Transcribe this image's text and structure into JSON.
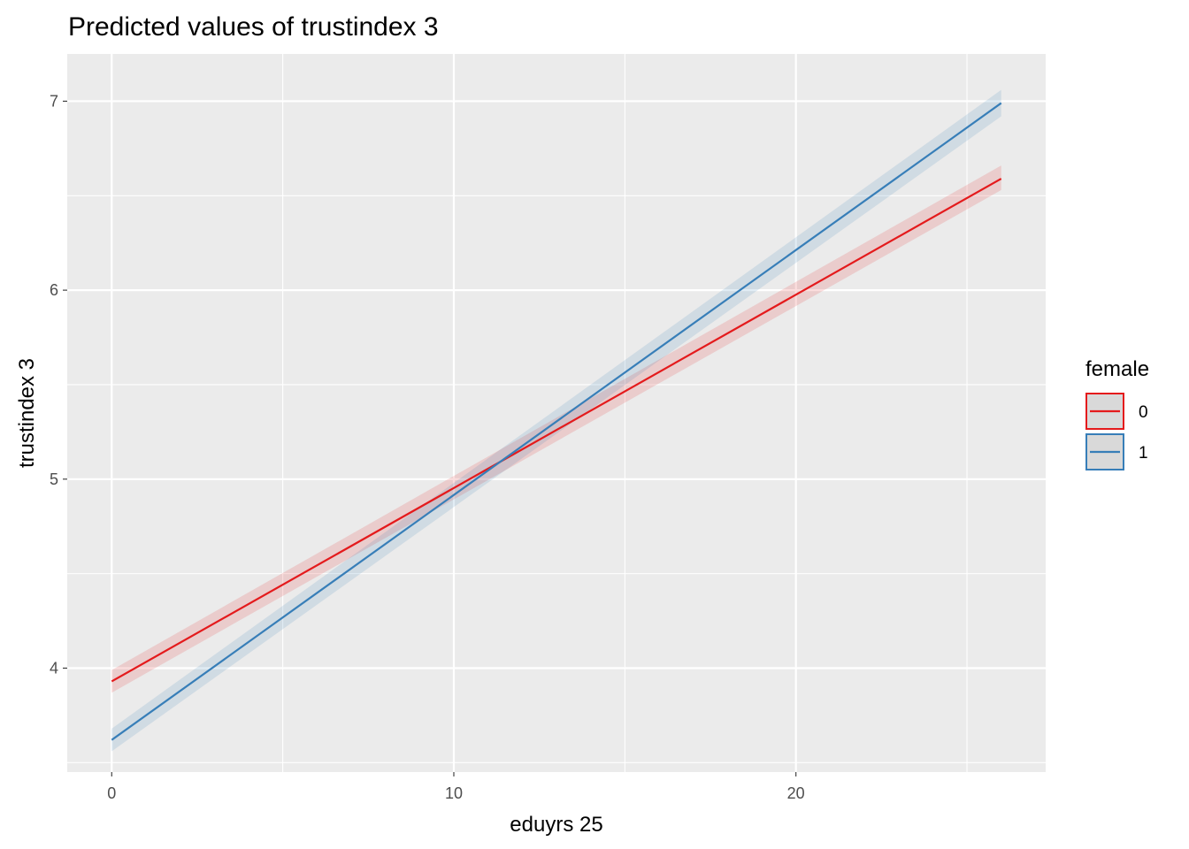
{
  "chart_data": {
    "type": "line",
    "title": "Predicted values of trustindex 3",
    "xlabel": "eduyrs 25",
    "ylabel": "trustindex 3",
    "xlim": [
      -1.3,
      27.3
    ],
    "ylim": [
      3.45,
      7.25
    ],
    "x_ticks": [
      0,
      10,
      20
    ],
    "x_tick_labels": [
      "0",
      "10",
      "20"
    ],
    "x_minor_ticks": [
      5,
      15,
      25
    ],
    "y_ticks": [
      4,
      5,
      6,
      7
    ],
    "y_tick_labels": [
      "4",
      "5",
      "6",
      "7"
    ],
    "y_minor_ticks": [
      3.5,
      4.5,
      5.5,
      6.5
    ],
    "grid": true,
    "legend": {
      "title": "female",
      "position": "right"
    },
    "series": [
      {
        "name": "0",
        "color": "#E41A1C",
        "x": [
          0,
          26
        ],
        "y": [
          3.93,
          6.59
        ],
        "ci_low": [
          3.87,
          6.53
        ],
        "ci_high": [
          3.99,
          6.66
        ]
      },
      {
        "name": "1",
        "color": "#377EB8",
        "x": [
          0,
          26
        ],
        "y": [
          3.62,
          6.99
        ],
        "ci_low": [
          3.56,
          6.92
        ],
        "ci_high": [
          3.68,
          7.06
        ]
      }
    ]
  }
}
